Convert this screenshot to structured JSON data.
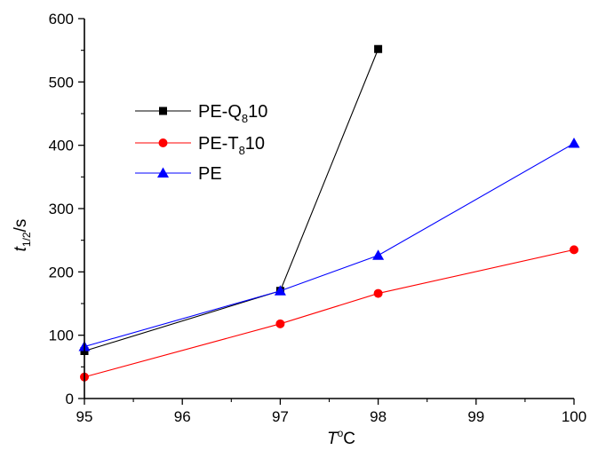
{
  "chart_data": {
    "type": "line",
    "x_label": {
      "main": "T",
      "sup": "o",
      "tail": "C"
    },
    "y_label": {
      "main": "t",
      "sub": "1/2",
      "tail": "/s"
    },
    "x_ticks": [
      95,
      96,
      97,
      98,
      99,
      100
    ],
    "y_ticks": [
      0,
      100,
      200,
      300,
      400,
      500,
      600
    ],
    "xlim": [
      95,
      100
    ],
    "ylim": [
      0,
      600
    ],
    "grid": false,
    "legend_position": "upper-left",
    "series": [
      {
        "name": "PE-Q810",
        "legend": {
          "pre": "PE-Q",
          "sub": "8",
          "post": "10"
        },
        "color": "#000000",
        "marker": "square",
        "points": [
          [
            95,
            75
          ],
          [
            97,
            170
          ],
          [
            98,
            552
          ]
        ]
      },
      {
        "name": "PE-T810",
        "legend": {
          "pre": "PE-T",
          "sub": "8",
          "post": "10"
        },
        "color": "#ff0000",
        "marker": "circle",
        "points": [
          [
            95,
            34
          ],
          [
            97,
            118
          ],
          [
            98,
            166
          ],
          [
            100,
            235
          ]
        ]
      },
      {
        "name": "PE",
        "legend": {
          "pre": "PE",
          "sub": "",
          "post": ""
        },
        "color": "#0000ff",
        "marker": "triangle",
        "points": [
          [
            95,
            82
          ],
          [
            97,
            170
          ],
          [
            98,
            226
          ],
          [
            100,
            403
          ]
        ]
      }
    ]
  }
}
